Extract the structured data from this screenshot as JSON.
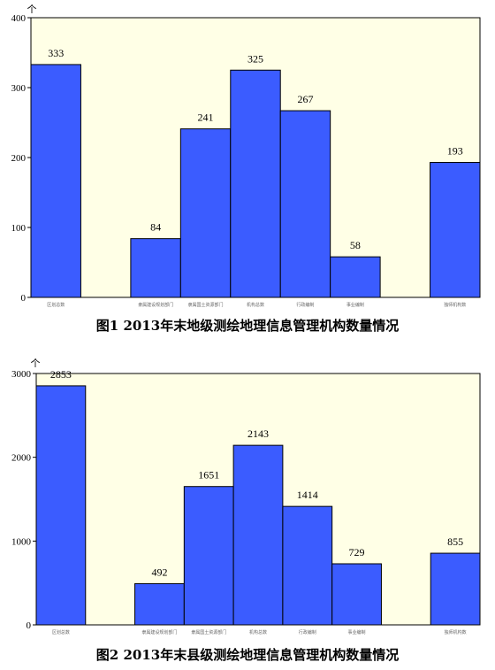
{
  "colors": {
    "plot_bg": "#ffffe6",
    "bar_fill": "#3b5cff",
    "bar_stroke": "#000000",
    "axis": "#000000"
  },
  "chart_data": [
    {
      "type": "bar",
      "caption": "图1   2013年末地级测绘地理信息管理机构数量情况",
      "unit": "个",
      "ylim": [
        0,
        400
      ],
      "yticks": [
        0,
        100,
        200,
        300,
        400
      ],
      "categories": [
        "区划总数",
        "",
        "隶属建设规划部门",
        "隶属国土资源部门",
        "机构总数",
        "行政编制",
        "事业编制",
        "",
        "独师机构数"
      ],
      "values": [
        333,
        null,
        84,
        241,
        325,
        267,
        58,
        null,
        193
      ],
      "grid": false,
      "legend": "none"
    },
    {
      "type": "bar",
      "caption": "图2   2013年末县级测绘地理信息管理机构数量情况",
      "unit": "个",
      "ylim": [
        0,
        3000
      ],
      "yticks": [
        0,
        1000,
        2000,
        3000
      ],
      "categories": [
        "区划总数",
        "",
        "隶属建设规划部门",
        "隶属国土资源部门",
        "机构总数",
        "行政编制",
        "事业编制",
        "",
        "独师机构数"
      ],
      "values": [
        2853,
        null,
        492,
        1651,
        2143,
        1414,
        729,
        null,
        855
      ],
      "grid": false,
      "legend": "none"
    }
  ]
}
